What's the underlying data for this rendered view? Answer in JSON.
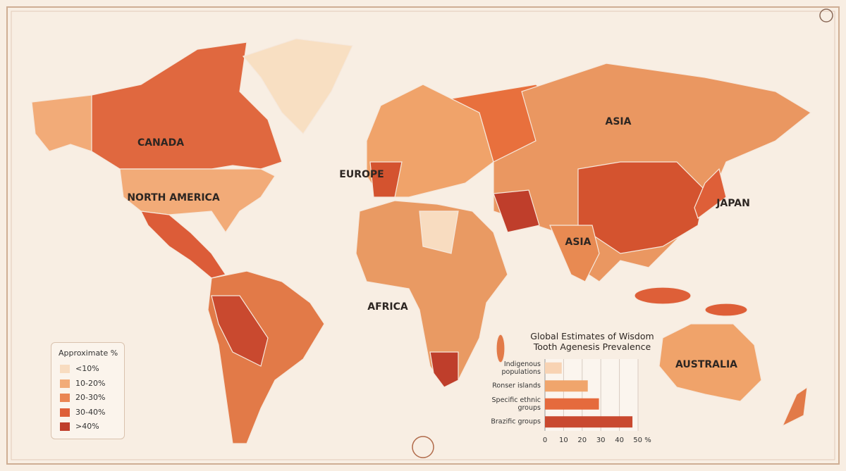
{
  "map": {
    "labels": [
      "CANADA",
      "NORTH AMERICA",
      "EUROPE",
      "AFRICA",
      "ASIA",
      "ASIA",
      "JAPAN",
      "AUSTRALIA"
    ]
  },
  "legend": {
    "title": "Approximate %",
    "items": [
      {
        "label": "<10%",
        "color": "#f8dcc0"
      },
      {
        "label": "10-20%",
        "color": "#f2ab78"
      },
      {
        "label": "20-30%",
        "color": "#ea8552"
      },
      {
        "label": "30-40%",
        "color": "#de5f38"
      },
      {
        "label": ">40%",
        "color": "#bf3e2b"
      }
    ]
  },
  "chart_data": {
    "type": "bar",
    "orientation": "horizontal",
    "title": "Global Estimates of Wisdom Tooth Agenesis Prevalence",
    "categories": [
      "Indigenous populations",
      "Ronser islands",
      "Specific ethnic groups",
      "Brazific groups"
    ],
    "values": [
      9,
      23,
      29,
      47
    ],
    "colors": [
      "#f8d3b3",
      "#f0a56c",
      "#e56a3d",
      "#c9492f"
    ],
    "xlim": [
      0,
      50
    ],
    "xticks": [
      0,
      10,
      20,
      30,
      40,
      {
        "value": 50,
        "label": "50 %"
      }
    ],
    "grid": true
  }
}
